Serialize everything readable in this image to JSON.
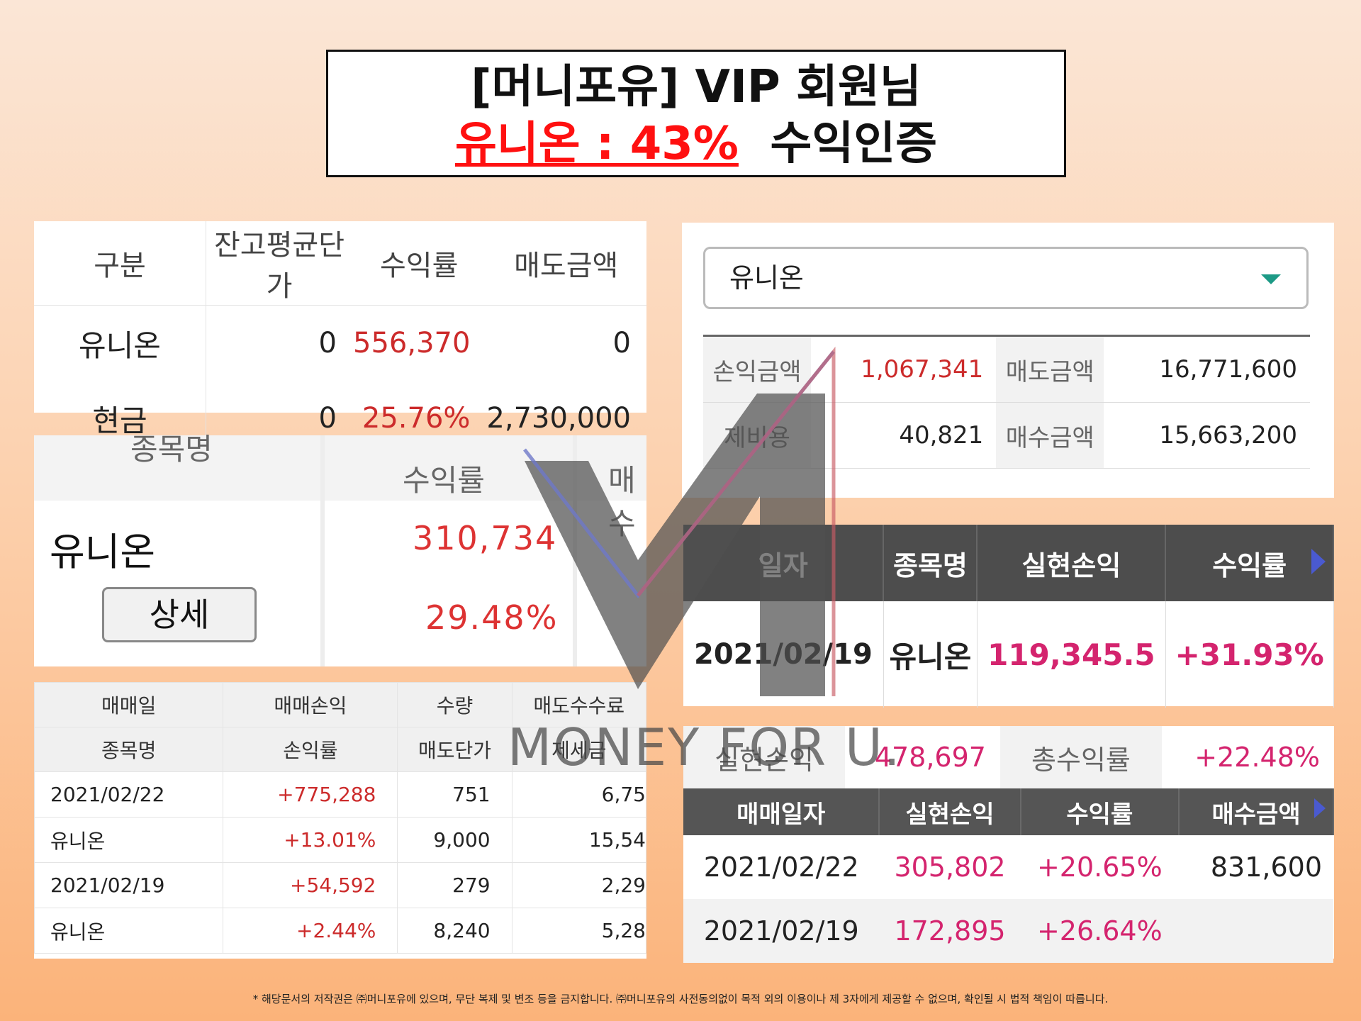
{
  "title": {
    "line1": "[머니포유] VIP 회원님",
    "line2_highlight": "유니온 : 43%",
    "line2_rest": "수익인증"
  },
  "panel_a": {
    "headers": [
      "구분",
      "잔고평균단가",
      "수익률",
      "매도금액"
    ],
    "rows": [
      [
        "유니온",
        "0",
        "556,370",
        "0"
      ],
      [
        "현금",
        "0",
        "25.76%",
        "2,730,000"
      ]
    ]
  },
  "panel_b": {
    "header_name": "종목명",
    "header_return": "수익률",
    "header_partial": "매수",
    "stock": "유니온",
    "detail_button": "상세",
    "value1": "310,734",
    "value2": "29.48%"
  },
  "panel_c": {
    "headers_row1": [
      "매매일",
      "매매손익",
      "수량",
      "매도수수료"
    ],
    "headers_row2": [
      "종목명",
      "손익률",
      "매도단가",
      "제세금"
    ],
    "rows": [
      [
        "2021/02/22",
        "+775,288",
        "751",
        "6,75"
      ],
      [
        "유니온",
        "+13.01%",
        "9,000",
        "15,54"
      ],
      [
        "2021/02/19",
        "+54,592",
        "279",
        "2,29"
      ],
      [
        "유니온",
        "+2.44%",
        "8,240",
        "5,28"
      ]
    ]
  },
  "panel_d": {
    "select_value": "유니온",
    "rows": [
      {
        "label1": "손익금액",
        "value1": "1,067,341",
        "label2": "매도금액",
        "value2": "16,771,600"
      },
      {
        "label1": "제비용",
        "value1": "40,821",
        "label2": "매수금액",
        "value2": "15,663,200"
      }
    ]
  },
  "panel_e": {
    "headers": [
      "일자",
      "종목명",
      "실현손익",
      "수익률"
    ],
    "row": [
      "2021/02/19",
      "유니온",
      "119,345.5",
      "+31.93%"
    ]
  },
  "panel_f": {
    "summary": {
      "label1": "실현손익",
      "value1": "478,697",
      "label2": "총수익률",
      "value2": "+22.48%"
    },
    "headers": [
      "매매일자",
      "실현손익",
      "수익률",
      "매수금액"
    ],
    "rows": [
      [
        "2021/02/22",
        "305,802",
        "+20.65%",
        "831,600"
      ],
      [
        "2021/02/19",
        "172,895",
        "+26.64%",
        ""
      ]
    ]
  },
  "watermark": {
    "text": "MONEY FOR U."
  },
  "footer": "* 해당문서의 저작권은 ㈜머니포유에 있으며, 무단 복제 및 변조 등을 금지합니다. ㈜머니포유의 사전동의없이 목적 외의 이용이나 제 3자에게 제공할 수 없으며, 확인될 시 법적 책임이 따릅니다.",
  "colors": {
    "accent_red": "#ff1010",
    "value_red": "#cc2b2b",
    "value_pink": "#d4246e",
    "dark_header": "#4d4d4d",
    "teal_arrow": "#1d9a86"
  }
}
